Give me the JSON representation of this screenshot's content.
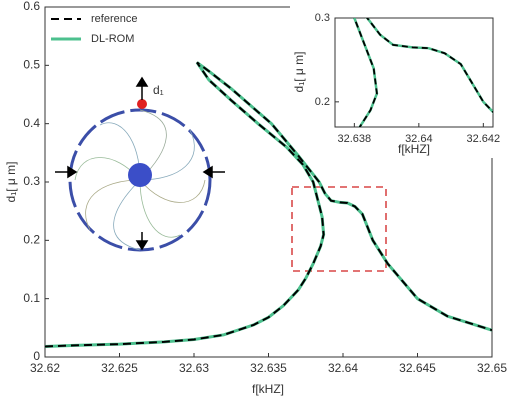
{
  "chart_data": [
    {
      "type": "line",
      "xlabel": "f[kHZ]",
      "ylabel": "d₁[ μ m]",
      "annotation": "d₁",
      "x": [
        32.62,
        32.622,
        32.625,
        32.628,
        32.63,
        32.632,
        32.634,
        32.635,
        32.636,
        32.637,
        32.6375,
        32.638,
        32.6385,
        32.6387,
        32.6386,
        32.6383,
        32.638,
        32.6373,
        32.6362,
        32.6343,
        32.6325,
        32.631,
        32.6302,
        32.631,
        32.6325,
        32.6352,
        32.637,
        32.6384,
        32.6388,
        32.6392,
        32.6398,
        32.6403,
        32.6408,
        32.6413,
        32.642,
        32.643,
        32.644,
        32.645,
        32.647,
        32.65
      ],
      "series": [
        {
          "name": "reference",
          "color": "#000000",
          "dash": true,
          "values": [
            0.018,
            0.02,
            0.022,
            0.026,
            0.03,
            0.038,
            0.055,
            0.068,
            0.088,
            0.115,
            0.135,
            0.16,
            0.19,
            0.21,
            0.24,
            0.27,
            0.3,
            0.33,
            0.36,
            0.4,
            0.44,
            0.475,
            0.505,
            0.49,
            0.46,
            0.4,
            0.345,
            0.3,
            0.28,
            0.268,
            0.265,
            0.264,
            0.258,
            0.245,
            0.2,
            0.16,
            0.13,
            0.1,
            0.07,
            0.046
          ]
        },
        {
          "name": "DL-ROM",
          "color": "#4cc08e",
          "dash": false,
          "values": [
            0.018,
            0.02,
            0.022,
            0.026,
            0.03,
            0.038,
            0.055,
            0.068,
            0.088,
            0.115,
            0.135,
            0.16,
            0.19,
            0.21,
            0.24,
            0.27,
            0.3,
            0.33,
            0.36,
            0.4,
            0.44,
            0.475,
            0.505,
            0.49,
            0.46,
            0.4,
            0.345,
            0.3,
            0.28,
            0.268,
            0.265,
            0.264,
            0.258,
            0.245,
            0.2,
            0.16,
            0.13,
            0.1,
            0.07,
            0.046
          ]
        }
      ],
      "xlim": [
        32.62,
        32.65
      ],
      "xticks": [
        32.62,
        32.625,
        32.63,
        32.635,
        32.64,
        32.645,
        32.65
      ],
      "ylim": [
        0,
        0.6
      ],
      "yticks": [
        0,
        0.1,
        0.2,
        0.3,
        0.4,
        0.5,
        0.6
      ],
      "legend": "upper left"
    },
    {
      "type": "line",
      "xlabel": "f[kHZ]",
      "ylabel": "d₁[ μ m]",
      "xlim": [
        32.6374,
        32.6423
      ],
      "xticks": [
        32.638,
        32.64,
        32.642
      ],
      "ylim": [
        0.17,
        0.3
      ],
      "yticks": [
        0.2,
        0.3
      ]
    }
  ]
}
